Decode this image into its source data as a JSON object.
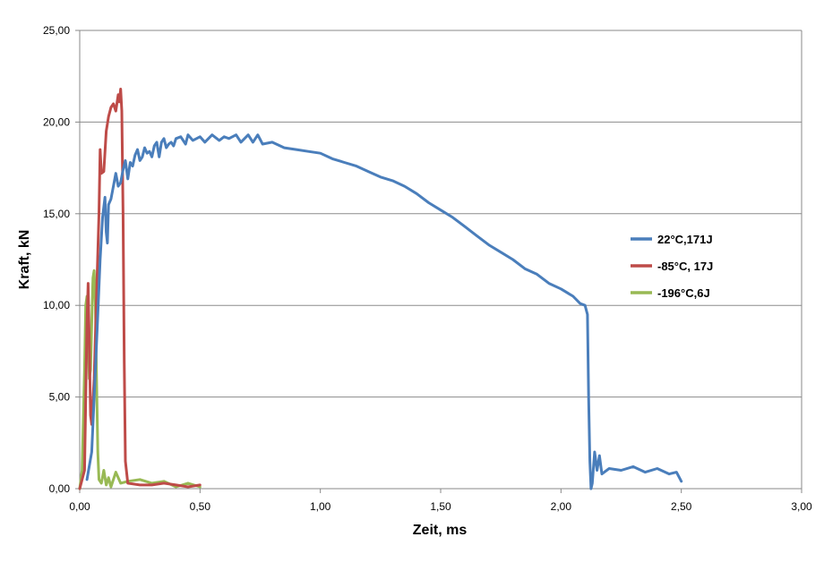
{
  "chart_data": {
    "type": "line",
    "xlabel": "Zeit, ms",
    "ylabel": "Kraft, kN",
    "xlim": [
      0,
      3
    ],
    "ylim": [
      0,
      25
    ],
    "xticks": [
      "0,00",
      "0,50",
      "1,00",
      "1,50",
      "2,00",
      "2,50",
      "3,00"
    ],
    "yticks": [
      "0,00",
      "5,00",
      "10,00",
      "15,00",
      "20,00",
      "25,00"
    ],
    "grid": "horizontal",
    "legend_position": "right",
    "series": [
      {
        "name": "22°C,171J",
        "color": "#4a7ebb",
        "points": [
          [
            0.03,
            0.5
          ],
          [
            0.05,
            2.0
          ],
          [
            0.065,
            6.5
          ],
          [
            0.075,
            9.5
          ],
          [
            0.085,
            12.5
          ],
          [
            0.095,
            14.8
          ],
          [
            0.105,
            15.9
          ],
          [
            0.11,
            14.0
          ],
          [
            0.115,
            13.4
          ],
          [
            0.12,
            15.5
          ],
          [
            0.13,
            15.8
          ],
          [
            0.14,
            16.5
          ],
          [
            0.15,
            17.2
          ],
          [
            0.16,
            16.5
          ],
          [
            0.17,
            16.7
          ],
          [
            0.18,
            17.4
          ],
          [
            0.19,
            17.9
          ],
          [
            0.2,
            16.9
          ],
          [
            0.21,
            17.8
          ],
          [
            0.22,
            17.6
          ],
          [
            0.23,
            18.2
          ],
          [
            0.24,
            18.5
          ],
          [
            0.25,
            17.9
          ],
          [
            0.26,
            18.1
          ],
          [
            0.27,
            18.6
          ],
          [
            0.28,
            18.3
          ],
          [
            0.29,
            18.4
          ],
          [
            0.3,
            18.1
          ],
          [
            0.31,
            18.7
          ],
          [
            0.32,
            18.9
          ],
          [
            0.33,
            18.1
          ],
          [
            0.34,
            18.9
          ],
          [
            0.35,
            19.1
          ],
          [
            0.36,
            18.6
          ],
          [
            0.37,
            18.8
          ],
          [
            0.38,
            18.9
          ],
          [
            0.39,
            18.7
          ],
          [
            0.4,
            19.1
          ],
          [
            0.42,
            19.2
          ],
          [
            0.44,
            18.8
          ],
          [
            0.45,
            19.3
          ],
          [
            0.47,
            19.0
          ],
          [
            0.5,
            19.2
          ],
          [
            0.52,
            18.9
          ],
          [
            0.55,
            19.3
          ],
          [
            0.58,
            19.0
          ],
          [
            0.6,
            19.2
          ],
          [
            0.62,
            19.1
          ],
          [
            0.65,
            19.3
          ],
          [
            0.67,
            18.9
          ],
          [
            0.7,
            19.3
          ],
          [
            0.72,
            18.9
          ],
          [
            0.74,
            19.3
          ],
          [
            0.76,
            18.8
          ],
          [
            0.8,
            18.9
          ],
          [
            0.85,
            18.6
          ],
          [
            0.9,
            18.5
          ],
          [
            0.95,
            18.4
          ],
          [
            1.0,
            18.3
          ],
          [
            1.05,
            18.0
          ],
          [
            1.1,
            17.8
          ],
          [
            1.15,
            17.6
          ],
          [
            1.2,
            17.3
          ],
          [
            1.25,
            17.0
          ],
          [
            1.3,
            16.8
          ],
          [
            1.35,
            16.5
          ],
          [
            1.4,
            16.1
          ],
          [
            1.45,
            15.6
          ],
          [
            1.5,
            15.2
          ],
          [
            1.55,
            14.8
          ],
          [
            1.6,
            14.3
          ],
          [
            1.65,
            13.8
          ],
          [
            1.7,
            13.3
          ],
          [
            1.75,
            12.9
          ],
          [
            1.8,
            12.5
          ],
          [
            1.85,
            12.0
          ],
          [
            1.9,
            11.7
          ],
          [
            1.95,
            11.2
          ],
          [
            2.0,
            10.9
          ],
          [
            2.05,
            10.5
          ],
          [
            2.08,
            10.1
          ],
          [
            2.1,
            10.0
          ],
          [
            2.11,
            9.5
          ],
          [
            2.115,
            5.0
          ],
          [
            2.12,
            1.5
          ],
          [
            2.125,
            0.0
          ],
          [
            2.13,
            0.3
          ],
          [
            2.14,
            2.0
          ],
          [
            2.15,
            1.0
          ],
          [
            2.16,
            1.8
          ],
          [
            2.17,
            0.8
          ],
          [
            2.2,
            1.1
          ],
          [
            2.25,
            1.0
          ],
          [
            2.3,
            1.2
          ],
          [
            2.35,
            0.9
          ],
          [
            2.4,
            1.1
          ],
          [
            2.45,
            0.8
          ],
          [
            2.48,
            0.9
          ],
          [
            2.5,
            0.4
          ]
        ]
      },
      {
        "name": "-85°C, 17J",
        "color": "#be4b48",
        "points": [
          [
            0.0,
            0.0
          ],
          [
            0.02,
            1.0
          ],
          [
            0.03,
            9.0
          ],
          [
            0.035,
            11.2
          ],
          [
            0.04,
            8.0
          ],
          [
            0.045,
            4.0
          ],
          [
            0.05,
            3.5
          ],
          [
            0.06,
            6.0
          ],
          [
            0.07,
            10.5
          ],
          [
            0.08,
            15.0
          ],
          [
            0.085,
            18.5
          ],
          [
            0.09,
            17.2
          ],
          [
            0.1,
            17.3
          ],
          [
            0.11,
            19.5
          ],
          [
            0.12,
            20.3
          ],
          [
            0.13,
            20.8
          ],
          [
            0.14,
            21.0
          ],
          [
            0.15,
            20.6
          ],
          [
            0.16,
            21.5
          ],
          [
            0.165,
            21.1
          ],
          [
            0.17,
            21.8
          ],
          [
            0.175,
            20.6
          ],
          [
            0.18,
            15.0
          ],
          [
            0.185,
            7.0
          ],
          [
            0.19,
            1.5
          ],
          [
            0.2,
            0.3
          ],
          [
            0.25,
            0.2
          ],
          [
            0.3,
            0.2
          ],
          [
            0.35,
            0.3
          ],
          [
            0.4,
            0.2
          ],
          [
            0.45,
            0.1
          ],
          [
            0.5,
            0.2
          ]
        ]
      },
      {
        "name": "-196°C,6J",
        "color": "#98b954",
        "points": [
          [
            0.0,
            0.0
          ],
          [
            0.01,
            1.0
          ],
          [
            0.02,
            6.5
          ],
          [
            0.025,
            10.0
          ],
          [
            0.03,
            10.5
          ],
          [
            0.035,
            9.0
          ],
          [
            0.04,
            6.0
          ],
          [
            0.045,
            6.5
          ],
          [
            0.05,
            9.0
          ],
          [
            0.055,
            11.5
          ],
          [
            0.06,
            11.9
          ],
          [
            0.065,
            10.0
          ],
          [
            0.07,
            6.0
          ],
          [
            0.075,
            2.0
          ],
          [
            0.08,
            0.5
          ],
          [
            0.09,
            0.3
          ],
          [
            0.1,
            1.0
          ],
          [
            0.11,
            0.2
          ],
          [
            0.12,
            0.6
          ],
          [
            0.13,
            0.1
          ],
          [
            0.15,
            0.9
          ],
          [
            0.17,
            0.3
          ],
          [
            0.2,
            0.4
          ],
          [
            0.25,
            0.5
          ],
          [
            0.3,
            0.3
          ],
          [
            0.35,
            0.4
          ],
          [
            0.4,
            0.1
          ],
          [
            0.45,
            0.3
          ],
          [
            0.5,
            0.1
          ]
        ]
      }
    ]
  }
}
